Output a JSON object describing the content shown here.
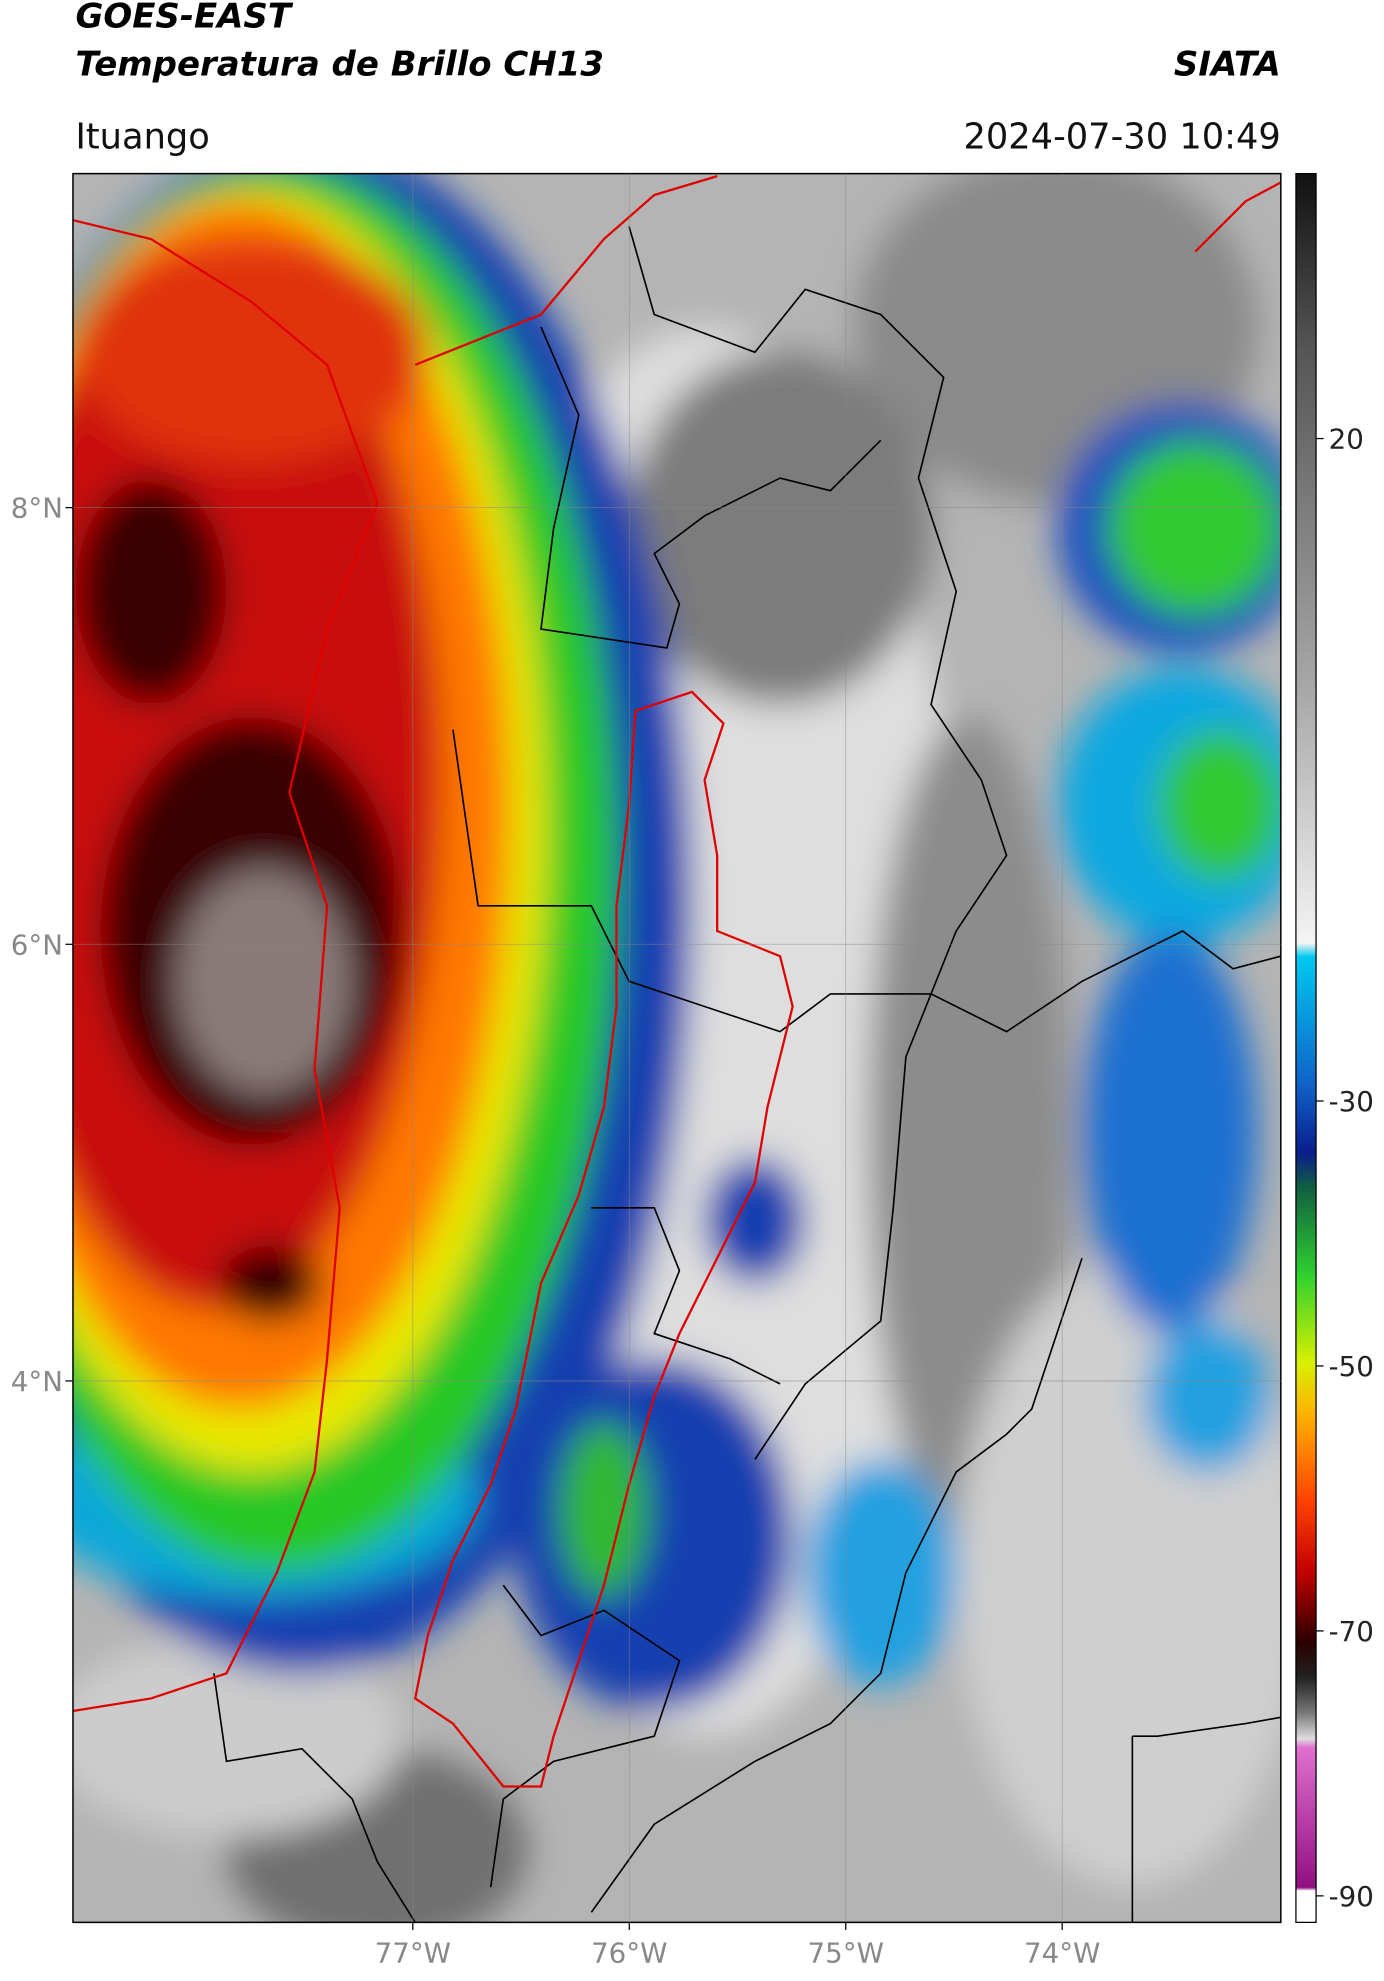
{
  "header": {
    "title": "GOES-EAST",
    "subtitle": "Temperatura de Brillo CH13",
    "credit": "SIATA",
    "location": "Ituango",
    "timestamp": "2024-07-30 10:49"
  },
  "map": {
    "lon_range": [
      -78.57,
      -72.99
    ],
    "lat_range": [
      1.52,
      9.53
    ],
    "lon_ticks": [
      {
        "value": -77,
        "label": "77°W"
      },
      {
        "value": -76,
        "label": "76°W"
      },
      {
        "value": -75,
        "label": "75°W"
      },
      {
        "value": -74,
        "label": "74°W"
      }
    ],
    "lat_ticks": [
      {
        "value": 8,
        "label": "8°N"
      },
      {
        "value": 6,
        "label": "6°N"
      },
      {
        "value": 4,
        "label": "4°N"
      }
    ]
  },
  "colorbar": {
    "range": [
      -92,
      40
    ],
    "ticks": [
      20,
      -30,
      -50,
      -70,
      -90
    ]
  }
}
